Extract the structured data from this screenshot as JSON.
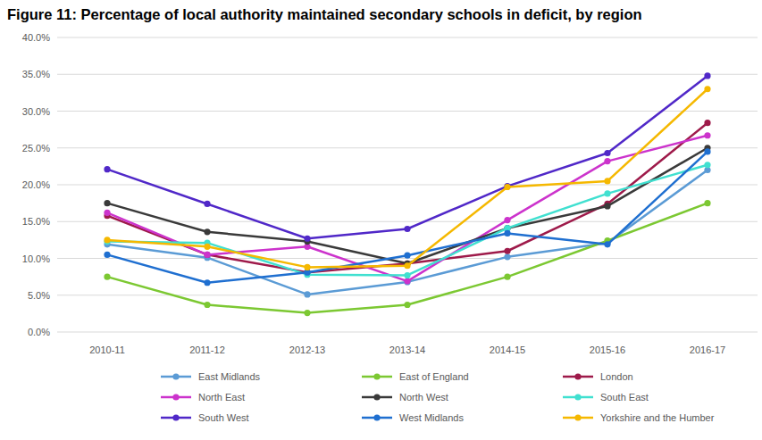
{
  "chart_data": {
    "type": "line",
    "title": "Figure 11: Percentage of local authority maintained secondary schools in deficit, by region",
    "categories": [
      "2010-11",
      "2011-12",
      "2012-13",
      "2013-14",
      "2014-15",
      "2015-16",
      "2016-17"
    ],
    "ylim": [
      0,
      40
    ],
    "yticks": [
      {
        "value": 0,
        "label": "0.0%"
      },
      {
        "value": 5,
        "label": "5.0%"
      },
      {
        "value": 10,
        "label": "10.0%"
      },
      {
        "value": 15,
        "label": "15.0%"
      },
      {
        "value": 20,
        "label": "20.0%"
      },
      {
        "value": 25,
        "label": "25.0%"
      },
      {
        "value": 30,
        "label": "30.0%"
      },
      {
        "value": 35,
        "label": "35.0%"
      },
      {
        "value": 40,
        "label": "40.0%"
      }
    ],
    "grid": true,
    "legend": "bottom",
    "marker": "circle",
    "series": [
      {
        "name": "East Midlands",
        "color": "#5b9bd5",
        "values": [
          11.9,
          10.1,
          5.1,
          6.8,
          10.2,
          12.1,
          22.0
        ]
      },
      {
        "name": "East of England",
        "color": "#7cc832",
        "values": [
          7.5,
          3.7,
          2.6,
          3.7,
          7.5,
          12.4,
          17.5
        ]
      },
      {
        "name": "London",
        "color": "#9e1a4a",
        "values": [
          15.8,
          10.5,
          8.1,
          9.3,
          11.0,
          17.4,
          28.4
        ]
      },
      {
        "name": "North East",
        "color": "#cc33cc",
        "values": [
          16.2,
          10.5,
          11.6,
          6.9,
          15.2,
          23.2,
          26.7
        ]
      },
      {
        "name": "North West",
        "color": "#3a3a3a",
        "values": [
          17.5,
          13.6,
          12.3,
          9.3,
          14.1,
          17.1,
          25.0
        ]
      },
      {
        "name": "South East",
        "color": "#40e0d0",
        "values": [
          12.3,
          12.1,
          7.8,
          7.7,
          14.1,
          18.8,
          22.7
        ]
      },
      {
        "name": "South West",
        "color": "#5028c8",
        "values": [
          22.1,
          17.4,
          12.7,
          14.0,
          19.8,
          24.3,
          34.8
        ]
      },
      {
        "name": "West Midlands",
        "color": "#1f6fd0",
        "values": [
          10.5,
          6.7,
          8.1,
          10.4,
          13.4,
          11.9,
          24.5
        ]
      },
      {
        "name": "Yorkshire and the Humber",
        "color": "#f5b800",
        "values": [
          12.5,
          11.6,
          8.8,
          9.0,
          19.7,
          20.5,
          33.0
        ]
      }
    ]
  }
}
